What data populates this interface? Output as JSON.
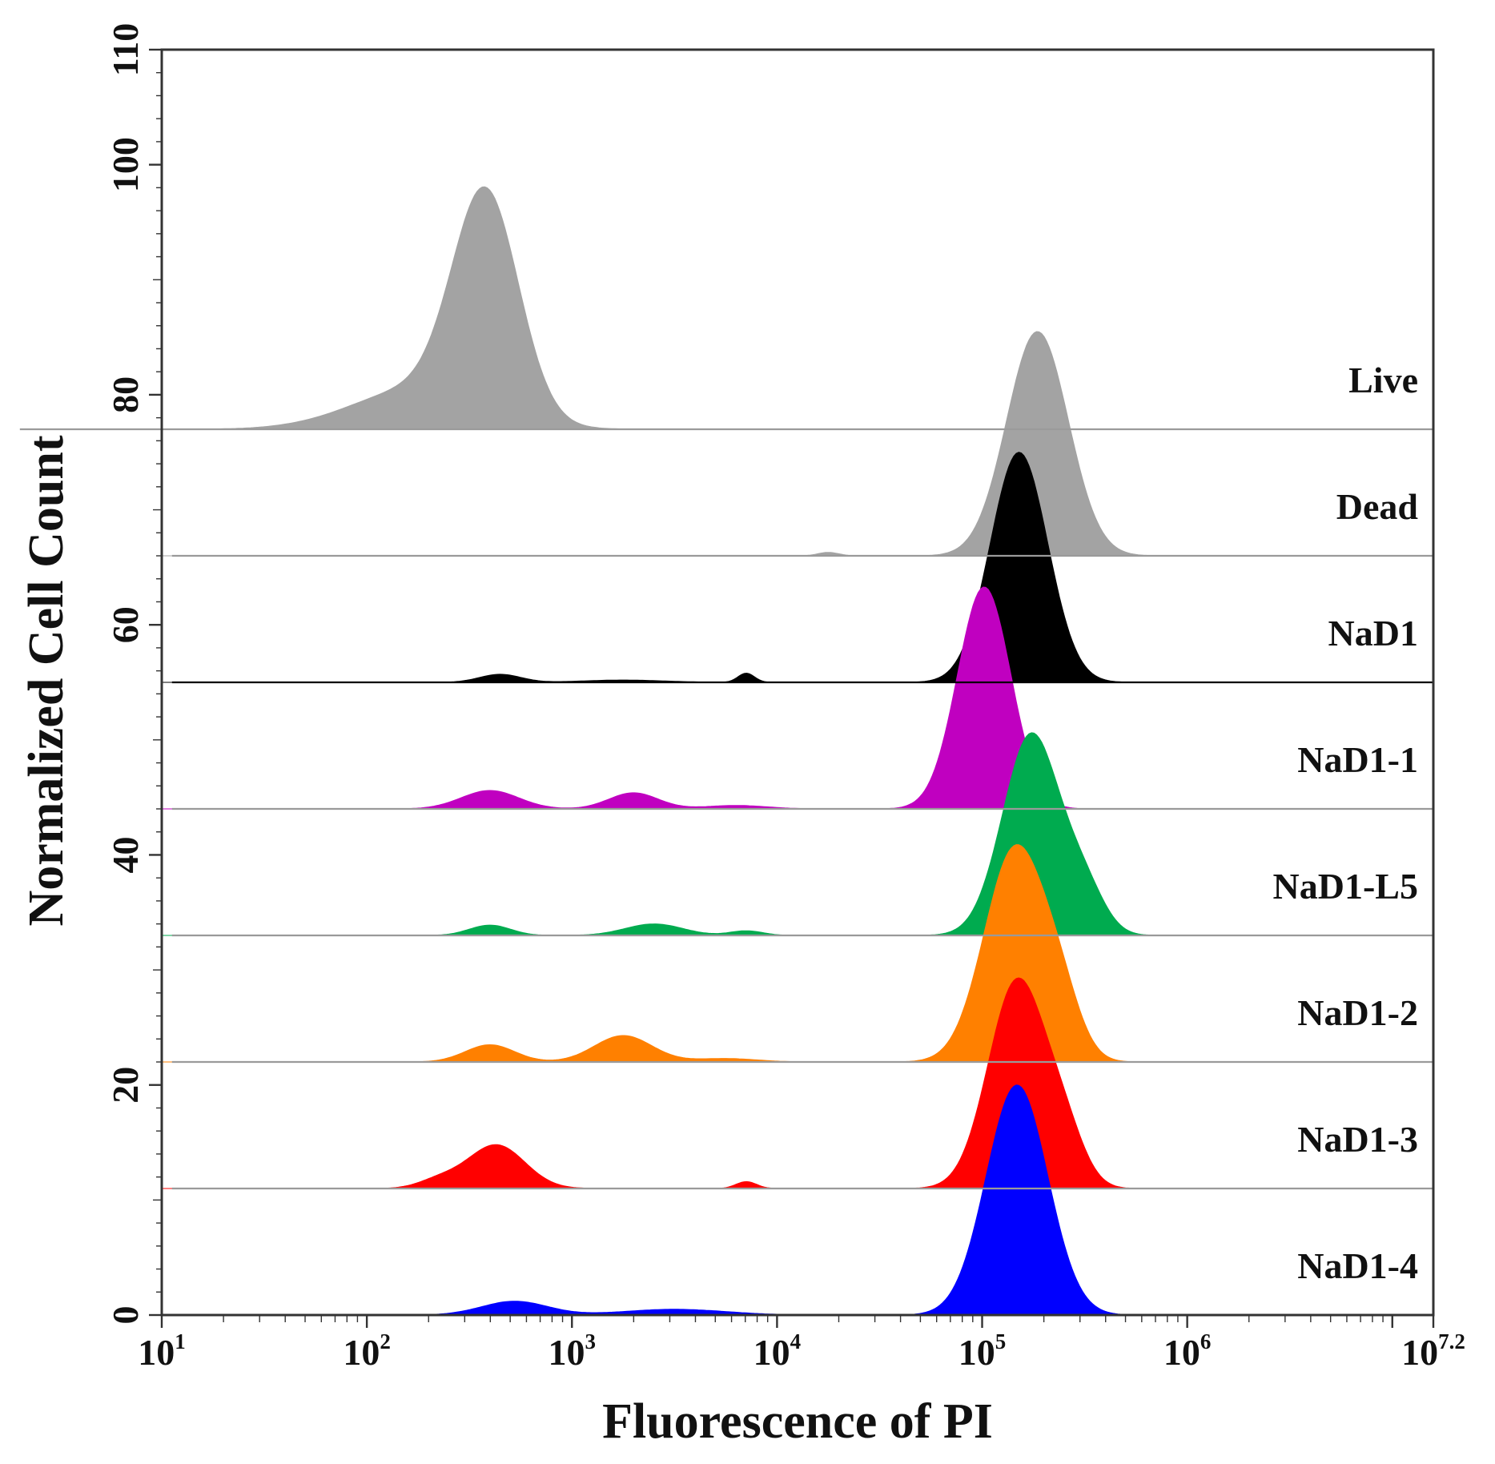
{
  "chart_data": {
    "type": "area",
    "title": "",
    "xlabel": "Fluorescence of PI",
    "ylabel": "Normalized Cell Count",
    "xscale": "log10",
    "xlim_exponent": [
      1,
      7.2
    ],
    "ylim": [
      0,
      110
    ],
    "x_ticks": [
      {
        "base": "10",
        "exp": "1",
        "value": 1
      },
      {
        "base": "10",
        "exp": "2",
        "value": 2
      },
      {
        "base": "10",
        "exp": "3",
        "value": 3
      },
      {
        "base": "10",
        "exp": "4",
        "value": 4
      },
      {
        "base": "10",
        "exp": "5",
        "value": 5
      },
      {
        "base": "10",
        "exp": "6",
        "value": 6
      },
      {
        "base": "10",
        "exp": "7.2",
        "value": 7.2
      }
    ],
    "y_ticks": [
      "0",
      "20",
      "40",
      "60",
      "80",
      "100",
      "110"
    ],
    "y_tick_values": [
      0,
      20,
      40,
      60,
      80,
      100,
      110
    ],
    "grid": false,
    "series": [
      {
        "name": "Live",
        "color": "#a3a3a3",
        "baseline": 77,
        "peaks": [
          {
            "mu": 2.58,
            "sigma": 0.16,
            "h": 19
          },
          {
            "mu": 2.25,
            "sigma": 0.32,
            "h": 3.5
          }
        ]
      },
      {
        "name": "Dead",
        "color": "#a3a3a3",
        "baseline": 66,
        "peaks": [
          {
            "mu": 5.27,
            "sigma": 0.15,
            "h": 19.5
          },
          {
            "mu": 4.25,
            "sigma": 0.05,
            "h": 0.3
          }
        ]
      },
      {
        "name": "NaD1",
        "color": "#000000",
        "baseline": 55,
        "peaks": [
          {
            "mu": 5.18,
            "sigma": 0.14,
            "h": 20
          },
          {
            "mu": 2.65,
            "sigma": 0.1,
            "h": 0.7
          },
          {
            "mu": 3.85,
            "sigma": 0.04,
            "h": 0.8
          },
          {
            "mu": 3.25,
            "sigma": 0.2,
            "h": 0.2
          }
        ]
      },
      {
        "name": "NaD1-1",
        "color": "#c000c0",
        "baseline": 44,
        "peaks": [
          {
            "mu": 5.01,
            "sigma": 0.13,
            "h": 19.3
          },
          {
            "mu": 2.6,
            "sigma": 0.14,
            "h": 1.6
          },
          {
            "mu": 3.3,
            "sigma": 0.12,
            "h": 1.4
          },
          {
            "mu": 3.8,
            "sigma": 0.15,
            "h": 0.3
          }
        ]
      },
      {
        "name": "NaD1-L5",
        "color": "#00ab4f",
        "baseline": 33,
        "peaks": [
          {
            "mu": 5.24,
            "sigma": 0.14,
            "h": 17.5
          },
          {
            "mu": 5.5,
            "sigma": 0.1,
            "h": 3.5
          },
          {
            "mu": 2.6,
            "sigma": 0.1,
            "h": 0.9
          },
          {
            "mu": 3.4,
            "sigma": 0.14,
            "h": 1.0
          },
          {
            "mu": 3.85,
            "sigma": 0.08,
            "h": 0.4
          }
        ]
      },
      {
        "name": "NaD1-2",
        "color": "#ff8000",
        "baseline": 22,
        "peaks": [
          {
            "mu": 5.16,
            "sigma": 0.15,
            "h": 18.5
          },
          {
            "mu": 5.38,
            "sigma": 0.1,
            "h": 4
          },
          {
            "mu": 2.6,
            "sigma": 0.12,
            "h": 1.5
          },
          {
            "mu": 3.25,
            "sigma": 0.14,
            "h": 2.3
          },
          {
            "mu": 3.75,
            "sigma": 0.15,
            "h": 0.3
          }
        ]
      },
      {
        "name": "NaD1-3",
        "color": "#ff0000",
        "baseline": 11,
        "peaks": [
          {
            "mu": 5.17,
            "sigma": 0.14,
            "h": 18
          },
          {
            "mu": 5.4,
            "sigma": 0.1,
            "h": 4
          },
          {
            "mu": 2.63,
            "sigma": 0.14,
            "h": 3.8
          },
          {
            "mu": 2.35,
            "sigma": 0.1,
            "h": 0.7
          },
          {
            "mu": 3.85,
            "sigma": 0.05,
            "h": 0.6
          }
        ]
      },
      {
        "name": "NaD1-4",
        "color": "#0000ff",
        "baseline": 0,
        "peaks": [
          {
            "mu": 5.17,
            "sigma": 0.15,
            "h": 20
          },
          {
            "mu": 2.72,
            "sigma": 0.16,
            "h": 1.2
          },
          {
            "mu": 3.5,
            "sigma": 0.25,
            "h": 0.5
          }
        ]
      }
    ]
  }
}
